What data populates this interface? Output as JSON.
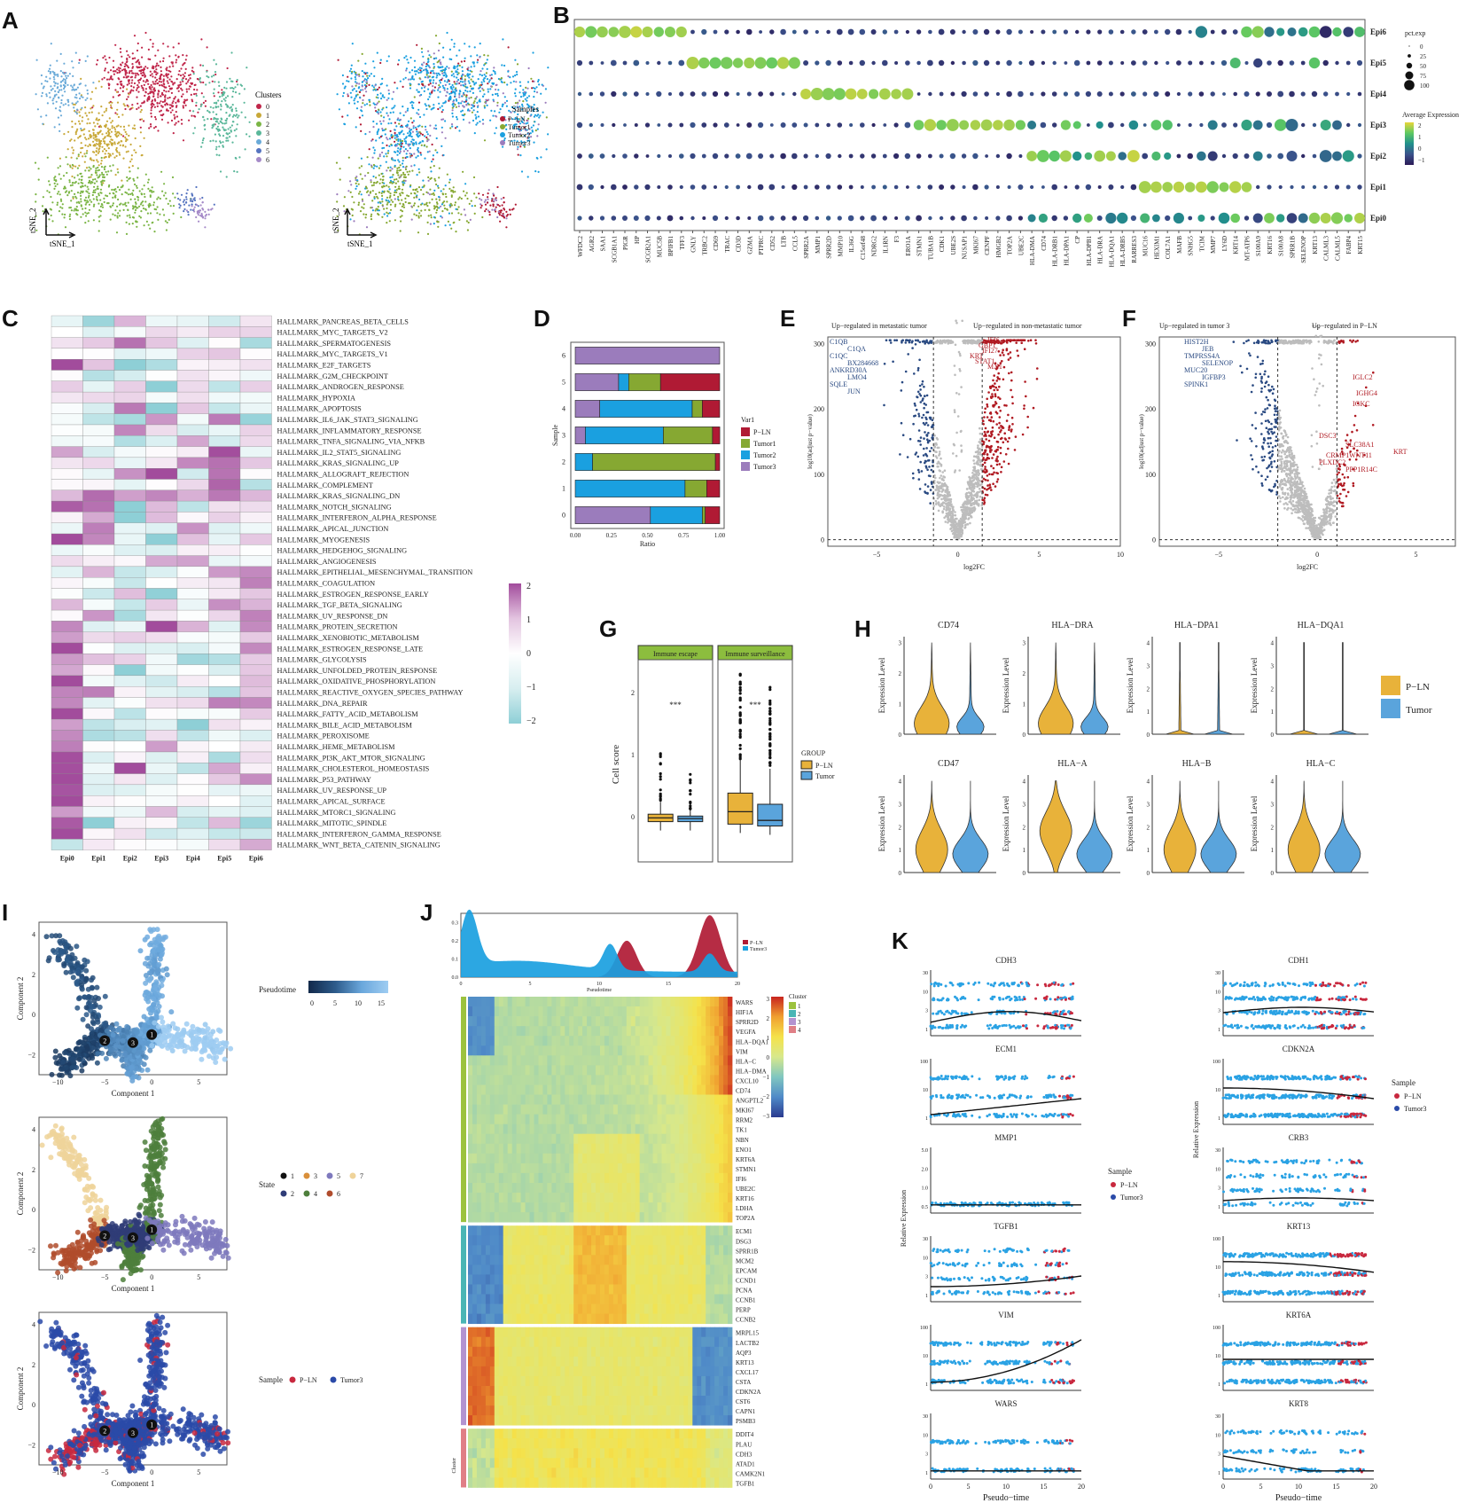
{
  "panel_letters": [
    "A",
    "B",
    "C",
    "D",
    "E",
    "F",
    "G",
    "H",
    "I",
    "J",
    "K"
  ],
  "colors": {
    "c0": "#c0264a",
    "c1": "#c8a838",
    "c2": "#7bb545",
    "c3": "#5ab79a",
    "c4": "#6aaad8",
    "c5": "#5674c0",
    "c6": "#a58ac8",
    "pln": "#b01a34",
    "tumor1": "#86a832",
    "tumor2": "#1aa0e0",
    "tumor3": "#9b7cbc",
    "heat_hi": "#a24c9c",
    "heat_mid": "#ffffff",
    "heat_lo": "#8ecfd6",
    "violin_pln": "#e8b23a",
    "violin_tumor": "#5aa4dc",
    "volcano_up": "#b01a22",
    "volcano_down": "#2a4a82",
    "volcano_ns": "#bdbdbd"
  },
  "panelA": {
    "axis_x": "tSNE_1",
    "axis_y": "tSNE_2",
    "clusters_title": "Clusters",
    "clusters": [
      "0",
      "1",
      "2",
      "3",
      "4",
      "5",
      "6"
    ],
    "samples_title": "Samples",
    "samples": [
      "P−LN",
      "Tumor1",
      "Tumor2",
      "Tumor3"
    ]
  },
  "panelB": {
    "rows": [
      "Epi6",
      "Epi5",
      "Epi4",
      "Epi3",
      "Epi2",
      "Epi1",
      "Epi0"
    ],
    "genes": [
      "WFDC2",
      "AGR2",
      "SAA1",
      "SCGB1A1",
      "PIGR",
      "HP",
      "SCGB2A1",
      "MUC5B",
      "BPIFB1",
      "TFF3",
      "GNLY",
      "TRBC2",
      "CD69",
      "TRAC",
      "CD3D",
      "GZMA",
      "PTPRC",
      "CD52",
      "LTB",
      "CCL5",
      "SPRR2A",
      "MMP1",
      "SPRR2D",
      "MMP10",
      "IL36G",
      "C15orf48",
      "NDRG2",
      "IL1RN",
      "F3",
      "ERO1A",
      "STMN1",
      "TUBA1B",
      "CDK1",
      "UBE2S",
      "NUSAP1",
      "MKI67",
      "CENPF",
      "HMGB2",
      "TOP2A",
      "UBE2C",
      "HLA-DMA",
      "CD74",
      "HLA-DRB1",
      "HLA-DPA1",
      "CP",
      "HLA-DPB1",
      "HLA-DRA",
      "HLA-DQA1",
      "HLA-DRB5",
      "RARRES3",
      "MUC16",
      "HEXIM1",
      "COL7A1",
      "MAFB",
      "SNHG5",
      "TCIM",
      "MMP7",
      "LY6D",
      "KRT14",
      "MT-ATP6",
      "S100A9",
      "KRT16",
      "S100A8",
      "SPRR1B",
      "SELENOP",
      "KRT13",
      "CALML3",
      "CALML5",
      "FABP4",
      "KRT15"
    ],
    "size_title": "pct.exp",
    "size_ticks": [
      "0",
      "25",
      "50",
      "75",
      "100"
    ],
    "color_title": "Average Expression",
    "color_ticks": [
      "2",
      "1",
      "0",
      "−1"
    ]
  },
  "panelC": {
    "columns": [
      "Epi0",
      "Epi1",
      "Epi2",
      "Epi3",
      "Epi4",
      "Epi5",
      "Epi6"
    ],
    "pathways": [
      "HALLMARK_PANCREAS_BETA_CELLS",
      "HALLMARK_MYC_TARGETS_V2",
      "HALLMARK_SPERMATOGENESIS",
      "HALLMARK_MYC_TARGETS_V1",
      "HALLMARK_E2F_TARGETS",
      "HALLMARK_G2M_CHECKPOINT",
      "HALLMARK_ANDROGEN_RESPONSE",
      "HALLMARK_HYPOXIA",
      "HALLMARK_APOPTOSIS",
      "HALLMARK_IL6_JAK_STAT3_SIGNALING",
      "HALLMARK_INFLAMMATORY_RESPONSE",
      "HALLMARK_TNFA_SIGNALING_VIA_NFKB",
      "HALLMARK_IL2_STAT5_SIGNALING",
      "HALLMARK_KRAS_SIGNALING_UP",
      "HALLMARK_ALLOGRAFT_REJECTION",
      "HALLMARK_COMPLEMENT",
      "HALLMARK_KRAS_SIGNALING_DN",
      "HALLMARK_NOTCH_SIGNALING",
      "HALLMARK_INTERFERON_ALPHA_RESPONSE",
      "HALLMARK_APICAL_JUNCTION",
      "HALLMARK_MYOGENESIS",
      "HALLMARK_HEDGEHOG_SIGNALING",
      "HALLMARK_ANGIOGENESIS",
      "HALLMARK_EPITHELIAL_MESENCHYMAL_TRANSITION",
      "HALLMARK_COAGULATION",
      "HALLMARK_ESTROGEN_RESPONSE_EARLY",
      "HALLMARK_TGF_BETA_SIGNALING",
      "HALLMARK_UV_RESPONSE_DN",
      "HALLMARK_PROTEIN_SECRETION",
      "HALLMARK_XENOBIOTIC_METABOLISM",
      "HALLMARK_ESTROGEN_RESPONSE_LATE",
      "HALLMARK_GLYCOLYSIS",
      "HALLMARK_UNFOLDED_PROTEIN_RESPONSE",
      "HALLMARK_OXIDATIVE_PHOSPHORYLATION",
      "HALLMARK_REACTIVE_OXYGEN_SPECIES_PATHWAY",
      "HALLMARK_DNA_REPAIR",
      "HALLMARK_FATTY_ACID_METABOLISM",
      "HALLMARK_BILE_ACID_METABOLISM",
      "HALLMARK_PEROXISOME",
      "HALLMARK_HEME_METABOLISM",
      "HALLMARK_PI3K_AKT_MTOR_SIGNALING",
      "HALLMARK_CHOLESTEROL_HOMEOSTASIS",
      "HALLMARK_P53_PATHWAY",
      "HALLMARK_UV_RESPONSE_UP",
      "HALLMARK_APICAL_SURFACE",
      "HALLMARK_MTORC1_SIGNALING",
      "HALLMARK_MITOTIC_SPINDLE",
      "HALLMARK_INTERFERON_GAMMA_RESPONSE",
      "HALLMARK_WNT_BETA_CATENIN_SIGNALING"
    ],
    "legend_ticks": [
      "2",
      "1",
      "0",
      "−1",
      "−2"
    ]
  },
  "chart_data": [
    {
      "type": "bar",
      "panel": "D",
      "stacked": true,
      "orientation": "horizontal",
      "categories": [
        "6",
        "5",
        "4",
        "3",
        "2",
        "1",
        "0"
      ],
      "series": [
        {
          "name": "Tumor3",
          "values": [
            1.0,
            0.3,
            0.17,
            0.07,
            0.0,
            0.0,
            0.52
          ]
        },
        {
          "name": "Tumor2",
          "values": [
            0.0,
            0.07,
            0.64,
            0.54,
            0.12,
            0.76,
            0.36
          ]
        },
        {
          "name": "Tumor1",
          "values": [
            0.0,
            0.22,
            0.07,
            0.34,
            0.85,
            0.15,
            0.02
          ]
        },
        {
          "name": "P−LN",
          "values": [
            0.0,
            0.41,
            0.12,
            0.05,
            0.03,
            0.09,
            0.1
          ]
        }
      ],
      "xlabel": "Ratio",
      "ylabel": "Sample",
      "xlim": [
        0,
        1
      ],
      "xticks": [
        "0.00",
        "0.25",
        "0.50",
        "0.75",
        "1.00"
      ],
      "legend_title": "Var1",
      "legend": [
        "P−LN",
        "Tumor1",
        "Tumor2",
        "Tumor3"
      ]
    },
    {
      "type": "scatter",
      "panel": "E",
      "title_left": "Up−regulated in metastatic tumor",
      "title_right": "Up−regulated in non-metastatic tumor",
      "xlabel": "log2FC",
      "ylabel": "log10(adjust p−value)",
      "xlim": [
        -8,
        10
      ],
      "ylim": [
        -10,
        310
      ],
      "xticks": [
        "−5",
        "0",
        "5",
        "10"
      ],
      "yticks": [
        "0",
        "100",
        "200",
        "300"
      ],
      "thresholds_x": [
        -1.5,
        1.5
      ],
      "labels_down": [
        "C1QB",
        "C1QA",
        "C1QC",
        "BX284668",
        "ANKRD30A",
        "LMO4",
        "SQLE",
        "JUN"
      ],
      "labels_up": [
        "IFI6",
        "GBP1",
        "IFI27",
        "KRT",
        "STAT1",
        "MX1"
      ]
    },
    {
      "type": "scatter",
      "panel": "F",
      "title_left": "Up−regulated in tumor 3",
      "title_right": "Up−regulated in P−LN",
      "xlabel": "log2FC",
      "ylabel": "log10(adjust p−value)",
      "xlim": [
        -8,
        7
      ],
      "ylim": [
        -10,
        310
      ],
      "xticks": [
        "−5",
        "0",
        "5"
      ],
      "yticks": [
        "0",
        "100",
        "200",
        "300"
      ],
      "thresholds_x": [
        -2,
        1
      ],
      "labels_down": [
        "HIST2H",
        "JEB",
        "TMPRSS4A",
        "SELENOP",
        "MUC20",
        "IGFBP3",
        "SPINK1"
      ],
      "labels_up": [
        "IGLC2",
        "IGHG4",
        "IGKC",
        "DSC3",
        "SLC38A1",
        "CRMP1",
        "WNT11",
        "PLXDC2",
        "PPP1R14C",
        "KRT"
      ]
    },
    {
      "type": "box",
      "panel": "G",
      "facets": [
        "Immune escape",
        "Immune surveillance"
      ],
      "groups": [
        "P−LN",
        "Tumor"
      ],
      "ylabel": "Cell score",
      "yticks": [
        "0",
        "1",
        "2"
      ],
      "medians": [
        [
          -0.02,
          -0.03
        ],
        [
          0.08,
          -0.06
        ]
      ],
      "q1": [
        [
          -0.08,
          -0.08
        ],
        [
          -0.12,
          -0.15
        ]
      ],
      "q3": [
        [
          0.04,
          0.01
        ],
        [
          0.38,
          0.2
        ]
      ],
      "signif": "***",
      "legend_title": "GROUP"
    },
    {
      "type": "violin",
      "panel": "H",
      "genes": [
        "CD74",
        "HLA−DRA",
        "HLA−DPA1",
        "HLA−DQA1",
        "CD47",
        "HLA−A",
        "HLA−B",
        "HLA−C"
      ],
      "ylabel": "Expression Level",
      "groups": [
        "P−LN",
        "Tumor"
      ]
    },
    {
      "type": "scatter",
      "panel": "I",
      "xlabel": "Component 1",
      "ylabel": "Component 2",
      "xticks": [
        "−10",
        "−5",
        "0",
        "5"
      ],
      "yticks": [
        "−2",
        "0",
        "2",
        "4"
      ],
      "rows": [
        {
          "legend_title": "Pseudotime",
          "legend_ticks": [
            "0",
            "5",
            "10",
            "15"
          ]
        },
        {
          "legend_title": "State",
          "legend": [
            "1",
            "2",
            "3",
            "4",
            "5",
            "6",
            "7"
          ]
        },
        {
          "legend_title": "Sample",
          "legend": [
            "P−LN",
            "Tumor3"
          ]
        }
      ],
      "nodes": [
        "1",
        "2",
        "3"
      ]
    },
    {
      "type": "heatmap",
      "panel": "J",
      "density_xlabel": "Pseudotime",
      "density_xticks": [
        "0",
        "5",
        "10",
        "15",
        "20"
      ],
      "density_yticks": [
        "0.0",
        "0.1",
        "0.2",
        "0.3"
      ],
      "density_legend": [
        "P−LN",
        "Tumor3"
      ],
      "genes": [
        "WARS",
        "HIF1A",
        "SPRR2D",
        "VEGFA",
        "HLA−DQA1",
        "VIM",
        "HLA−C",
        "HLA−DMA",
        "CXCL10",
        "CD74",
        "ANGPTL2",
        "MKI67",
        "RRM2",
        "TK1",
        "NBN",
        "ENO1",
        "KRT6A",
        "STMN1",
        "IFI6",
        "UBE2C",
        "KRT16",
        "LDHA",
        "TOP2A",
        "ECM1",
        "DSG3",
        "SPRR1B",
        "MCM2",
        "EPCAM",
        "CCND1",
        "PCNA",
        "CCNB1",
        "PERP",
        "CCNB2",
        "MRPL15",
        "LACTB2",
        "AQP3",
        "KRT13",
        "CXCL17",
        "CSTA",
        "CDKN2A",
        "CST6",
        "CAPN1",
        "PSMB3",
        "DDIT4",
        "PLAU",
        "CDH3",
        "ATAD1",
        "CAMK2N1",
        "TGFB1"
      ],
      "cluster_sizes": [
        23,
        10,
        10,
        6
      ],
      "legend_ticks": [
        "3",
        "2",
        "1",
        "0",
        "−1",
        "−2",
        "−3"
      ],
      "cluster_legend_title": "Cluster",
      "cluster_legend": [
        "1",
        "2",
        "3",
        "4"
      ],
      "side_label": "Cluster"
    },
    {
      "type": "scatter",
      "panel": "K",
      "left_genes": [
        "CDH3",
        "ECM1",
        "MMP1",
        "TGFB1",
        "VIM",
        "WARS"
      ],
      "right_genes": [
        "CDH1",
        "CDKN2A",
        "CRB3",
        "KRT13",
        "KRT6A",
        "KRT8"
      ],
      "xlabel": "Pseudo−time",
      "ylabel": "Relative Expression",
      "xticks": [
        "0",
        "5",
        "10",
        "15",
        "20"
      ],
      "legend_title": "Sample",
      "legend": [
        "P−LN",
        "Tumor3"
      ]
    }
  ]
}
